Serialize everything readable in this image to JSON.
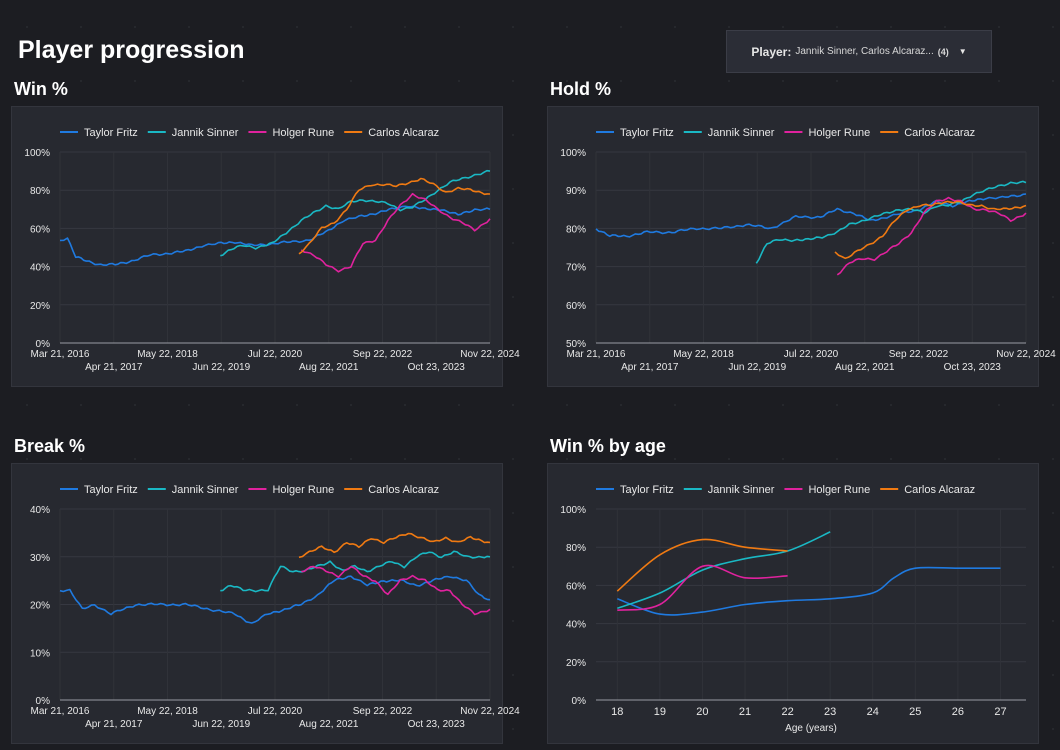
{
  "page": {
    "title": "Player progression"
  },
  "filter": {
    "label": "Player:",
    "value": "Jannik Sinner, Carlos Alcaraz...",
    "count": "(4)"
  },
  "colors": {
    "Taylor Fritz": "#1f7ae0",
    "Jannik Sinner": "#1ab8c4",
    "Holger Rune": "#e0229e",
    "Carlos Alcaraz": "#f07a12"
  },
  "chart_data": [
    {
      "id": "win",
      "type": "line",
      "title": "Win %",
      "xlabel": "",
      "ylabel": "",
      "x_axis": "date",
      "xlim": [
        "2016-03-21",
        "2024-11-22"
      ],
      "x_ticks_top": [
        "Mar 21, 2016",
        "May 22, 2018",
        "Jul 22, 2020",
        "Sep 22, 2022",
        "Nov 22, 2024"
      ],
      "x_ticks_bottom": [
        "Apr 21, 2017",
        "Jun 22, 2019",
        "Aug 22, 2021",
        "Oct 23, 2023"
      ],
      "y_ticks": [
        "0%",
        "20%",
        "40%",
        "60%",
        "80%",
        "100%"
      ],
      "ylim": [
        0,
        100
      ],
      "grid": true,
      "legend": "top-left",
      "series": [
        {
          "name": "Taylor Fritz",
          "x": [
            "2016-03-21",
            "2016-05-15",
            "2016-07-15",
            "2016-10-01",
            "2017-01-15",
            "2017-05-01",
            "2017-09-01",
            "2018-01-15",
            "2018-06-01",
            "2018-10-01",
            "2019-02-01",
            "2019-06-01",
            "2019-10-01",
            "2020-02-01",
            "2020-07-01",
            "2020-12-01",
            "2021-04-01",
            "2021-08-01",
            "2021-12-01",
            "2022-04-01",
            "2022-08-01",
            "2022-12-01",
            "2023-04-01",
            "2023-08-01",
            "2023-12-01",
            "2024-04-01",
            "2024-08-01",
            "2024-11-22"
          ],
          "values": [
            54,
            55,
            45,
            43,
            41,
            41,
            43,
            46,
            47,
            48,
            51,
            52,
            53,
            51,
            52,
            53,
            54,
            58,
            64,
            66,
            68,
            70,
            72,
            70,
            70,
            67,
            70,
            70
          ]
        },
        {
          "name": "Jannik Sinner",
          "x": [
            "2019-06-15",
            "2019-09-01",
            "2019-12-01",
            "2020-03-01",
            "2020-07-01",
            "2020-11-01",
            "2021-02-01",
            "2021-05-01",
            "2021-08-01",
            "2021-11-01",
            "2022-02-01",
            "2022-05-01",
            "2022-08-01",
            "2022-11-01",
            "2023-02-01",
            "2023-05-01",
            "2023-08-01",
            "2023-11-01",
            "2024-02-01",
            "2024-05-01",
            "2024-08-01",
            "2024-11-22"
          ],
          "values": [
            46,
            49,
            51,
            50,
            52,
            59,
            64,
            68,
            72,
            70,
            74,
            75,
            74,
            73,
            70,
            71,
            75,
            80,
            84,
            86,
            88,
            90
          ]
        },
        {
          "name": "Holger Rune",
          "x": [
            "2021-02-01",
            "2021-05-01",
            "2021-08-01",
            "2021-11-01",
            "2022-02-01",
            "2022-05-01",
            "2022-08-01",
            "2022-11-01",
            "2023-02-01",
            "2023-05-01",
            "2023-08-01",
            "2023-11-01",
            "2024-02-01",
            "2024-05-01",
            "2024-08-01",
            "2024-11-22"
          ],
          "values": [
            49,
            46,
            41,
            38,
            40,
            52,
            54,
            64,
            72,
            78,
            75,
            70,
            66,
            63,
            59,
            65
          ]
        },
        {
          "name": "Carlos Alcaraz",
          "x": [
            "2021-01-15",
            "2021-04-01",
            "2021-07-01",
            "2021-10-01",
            "2022-01-01",
            "2022-04-01",
            "2022-07-01",
            "2022-10-01",
            "2023-01-01",
            "2023-04-01",
            "2023-07-01",
            "2023-10-01",
            "2024-01-01",
            "2024-04-01",
            "2024-07-01",
            "2024-11-22"
          ],
          "values": [
            47,
            52,
            60,
            63,
            70,
            80,
            83,
            83,
            82,
            84,
            86,
            83,
            79,
            81,
            80,
            78
          ]
        }
      ]
    },
    {
      "id": "hold",
      "type": "line",
      "title": "Hold %",
      "xlabel": "",
      "ylabel": "",
      "x_axis": "date",
      "xlim": [
        "2016-03-21",
        "2024-11-22"
      ],
      "x_ticks_top": [
        "Mar 21, 2016",
        "May 22, 2018",
        "Jul 22, 2020",
        "Sep 22, 2022",
        "Nov 22, 2024"
      ],
      "x_ticks_bottom": [
        "Apr 21, 2017",
        "Jun 22, 2019",
        "Aug 22, 2021",
        "Oct 23, 2023"
      ],
      "y_ticks": [
        "50%",
        "60%",
        "70%",
        "80%",
        "90%",
        "100%"
      ],
      "ylim": [
        50,
        100
      ],
      "grid": true,
      "legend": "top-left",
      "series": [
        {
          "name": "Taylor Fritz",
          "x": [
            "2016-03-21",
            "2016-07-01",
            "2016-11-01",
            "2017-04-01",
            "2017-10-01",
            "2018-04-01",
            "2018-10-01",
            "2019-04-01",
            "2019-10-01",
            "2020-04-01",
            "2020-10-01",
            "2021-02-01",
            "2021-06-01",
            "2021-10-01",
            "2022-02-01",
            "2022-06-01",
            "2022-10-01",
            "2023-02-01",
            "2023-06-01",
            "2023-10-01",
            "2024-02-01",
            "2024-06-01",
            "2024-11-22"
          ],
          "values": [
            80,
            78,
            78,
            79,
            79,
            80,
            80,
            81,
            80,
            83,
            83,
            85,
            84,
            82,
            83,
            84,
            85,
            87,
            86,
            87,
            88,
            88,
            89
          ]
        },
        {
          "name": "Jannik Sinner",
          "x": [
            "2019-06-15",
            "2019-09-01",
            "2019-12-01",
            "2020-03-01",
            "2020-07-01",
            "2020-11-01",
            "2021-02-01",
            "2021-05-01",
            "2021-08-01",
            "2021-11-01",
            "2022-02-01",
            "2022-05-01",
            "2022-08-01",
            "2022-11-01",
            "2023-02-01",
            "2023-05-01",
            "2023-08-01",
            "2023-11-01",
            "2024-02-01",
            "2024-05-01",
            "2024-08-01",
            "2024-11-22"
          ],
          "values": [
            71,
            76,
            77,
            77,
            77,
            78,
            79,
            81,
            82,
            83,
            84,
            85,
            85,
            84,
            86,
            86,
            87,
            89,
            90,
            91,
            92,
            92
          ]
        },
        {
          "name": "Holger Rune",
          "x": [
            "2021-02-01",
            "2021-05-01",
            "2021-08-01",
            "2021-11-01",
            "2022-02-01",
            "2022-05-01",
            "2022-08-01",
            "2022-11-01",
            "2023-02-01",
            "2023-05-01",
            "2023-08-01",
            "2023-11-01",
            "2024-02-01",
            "2024-05-01",
            "2024-08-01",
            "2024-11-22"
          ],
          "values": [
            68,
            71,
            72,
            72,
            74,
            76,
            79,
            84,
            87,
            88,
            87,
            85,
            85,
            84,
            82,
            84
          ]
        },
        {
          "name": "Carlos Alcaraz",
          "x": [
            "2021-01-15",
            "2021-04-01",
            "2021-07-01",
            "2021-10-01",
            "2022-01-01",
            "2022-04-01",
            "2022-07-01",
            "2022-10-01",
            "2023-01-01",
            "2023-04-01",
            "2023-07-01",
            "2023-10-01",
            "2024-01-01",
            "2024-04-01",
            "2024-07-01",
            "2024-11-22"
          ],
          "values": [
            74,
            72,
            74,
            76,
            78,
            82,
            85,
            86,
            86,
            87,
            87,
            86,
            86,
            85,
            85,
            86
          ]
        }
      ]
    },
    {
      "id": "break",
      "type": "line",
      "title": "Break %",
      "xlabel": "",
      "ylabel": "",
      "x_axis": "date",
      "xlim": [
        "2016-03-21",
        "2024-11-22"
      ],
      "x_ticks_top": [
        "Mar 21, 2016",
        "May 22, 2018",
        "Jul 22, 2020",
        "Sep 22, 2022",
        "Nov 22, 2024"
      ],
      "x_ticks_bottom": [
        "Apr 21, 2017",
        "Jun 22, 2019",
        "Aug 22, 2021",
        "Oct 23, 2023"
      ],
      "y_ticks": [
        "0%",
        "10%",
        "20%",
        "30%",
        "40%"
      ],
      "ylim": [
        0,
        40
      ],
      "grid": true,
      "legend": "top-left",
      "series": [
        {
          "name": "Taylor Fritz",
          "x": [
            "2016-03-21",
            "2016-06-01",
            "2016-09-01",
            "2016-12-01",
            "2017-04-01",
            "2017-10-01",
            "2018-04-01",
            "2018-10-01",
            "2019-04-01",
            "2019-10-01",
            "2020-02-01",
            "2020-06-01",
            "2020-10-01",
            "2021-02-01",
            "2021-06-01",
            "2021-10-01",
            "2022-02-01",
            "2022-06-01",
            "2022-10-01",
            "2023-02-01",
            "2023-06-01",
            "2023-10-01",
            "2024-02-01",
            "2024-06-01",
            "2024-09-01",
            "2024-11-22"
          ],
          "values": [
            23,
            23,
            19,
            20,
            18,
            20,
            20,
            20,
            19,
            18,
            16,
            18,
            19,
            20,
            22,
            25,
            26,
            24,
            25,
            25,
            24,
            25,
            26,
            25,
            22,
            21
          ]
        },
        {
          "name": "Jannik Sinner",
          "x": [
            "2019-06-15",
            "2019-09-01",
            "2019-12-01",
            "2020-03-01",
            "2020-06-01",
            "2020-09-01",
            "2020-12-01",
            "2021-03-01",
            "2021-06-01",
            "2021-09-01",
            "2021-12-01",
            "2022-03-01",
            "2022-06-01",
            "2022-09-01",
            "2022-12-01",
            "2023-03-01",
            "2023-06-01",
            "2023-09-01",
            "2023-12-01",
            "2024-03-01",
            "2024-06-01",
            "2024-09-01",
            "2024-11-22"
          ],
          "values": [
            23,
            24,
            23,
            23,
            23,
            28,
            27,
            27,
            28,
            29,
            27,
            28,
            27,
            28,
            29,
            28,
            30,
            31,
            30,
            31,
            30,
            30,
            30
          ]
        },
        {
          "name": "Holger Rune",
          "x": [
            "2021-02-01",
            "2021-05-01",
            "2021-08-01",
            "2021-11-01",
            "2022-02-01",
            "2022-05-01",
            "2022-08-01",
            "2022-11-01",
            "2023-02-01",
            "2023-05-01",
            "2023-08-01",
            "2023-11-01",
            "2024-02-01",
            "2024-05-01",
            "2024-08-01",
            "2024-11-22"
          ],
          "values": [
            27,
            28,
            27,
            26,
            28,
            26,
            25,
            22,
            25,
            26,
            25,
            23,
            23,
            20,
            18,
            19
          ]
        },
        {
          "name": "Carlos Alcaraz",
          "x": [
            "2021-01-15",
            "2021-04-01",
            "2021-07-01",
            "2021-10-01",
            "2022-01-01",
            "2022-04-01",
            "2022-07-01",
            "2022-10-01",
            "2023-01-01",
            "2023-04-01",
            "2023-07-01",
            "2023-10-01",
            "2024-01-01",
            "2024-04-01",
            "2024-07-01",
            "2024-11-22"
          ],
          "values": [
            30,
            31,
            32,
            31,
            33,
            32,
            34,
            33,
            34,
            35,
            34,
            33,
            34,
            33,
            34,
            33
          ]
        }
      ]
    },
    {
      "id": "age",
      "type": "line",
      "title": "Win % by age",
      "xlabel": "Age (years)",
      "ylabel": "",
      "x_axis": "number",
      "xlim": [
        17.5,
        27.6
      ],
      "x_ticks": [
        18,
        19,
        20,
        21,
        22,
        23,
        24,
        25,
        26,
        27
      ],
      "y_ticks": [
        "0%",
        "20%",
        "40%",
        "60%",
        "80%",
        "100%"
      ],
      "ylim": [
        0,
        100
      ],
      "grid": true,
      "legend": "top-left",
      "series": [
        {
          "name": "Taylor Fritz",
          "x": [
            18,
            19,
            20,
            21,
            22,
            23,
            24,
            24.5,
            25,
            26,
            27
          ],
          "values": [
            53,
            45,
            46,
            50,
            52,
            53,
            56,
            64,
            69,
            69,
            69
          ]
        },
        {
          "name": "Jannik Sinner",
          "x": [
            18,
            19,
            20,
            21,
            22,
            23
          ],
          "values": [
            48,
            56,
            68,
            74,
            78,
            88
          ]
        },
        {
          "name": "Holger Rune",
          "x": [
            18,
            19,
            20,
            21,
            22
          ],
          "values": [
            47,
            50,
            70,
            64,
            65
          ]
        },
        {
          "name": "Carlos Alcaraz",
          "x": [
            18,
            19,
            20,
            21,
            22
          ],
          "values": [
            57,
            76,
            84,
            80,
            78
          ]
        }
      ]
    }
  ]
}
